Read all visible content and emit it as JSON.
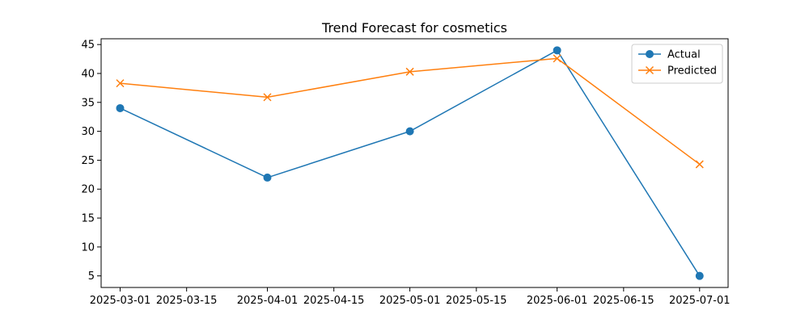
{
  "chart_data": {
    "type": "line",
    "title": "Trend Forecast for cosmetics",
    "xlabel": "",
    "ylabel": "",
    "x_axis": {
      "type": "date",
      "range": [
        "2025-02-25",
        "2025-07-07"
      ],
      "ticks": [
        {
          "date": "2025-03-01",
          "label": "2025-03-01"
        },
        {
          "date": "2025-03-15",
          "label": "2025-03-15"
        },
        {
          "date": "2025-04-01",
          "label": "2025-04-01"
        },
        {
          "date": "2025-04-15",
          "label": "2025-04-15"
        },
        {
          "date": "2025-05-01",
          "label": "2025-05-01"
        },
        {
          "date": "2025-05-15",
          "label": "2025-05-15"
        },
        {
          "date": "2025-06-01",
          "label": "2025-06-01"
        },
        {
          "date": "2025-06-15",
          "label": "2025-06-15"
        },
        {
          "date": "2025-07-01",
          "label": "2025-07-01"
        }
      ]
    },
    "y_axis": {
      "range": [
        3,
        46
      ],
      "ticks": [
        5,
        10,
        15,
        20,
        25,
        30,
        35,
        40,
        45
      ]
    },
    "grid": false,
    "legend": {
      "placement": "top-right"
    },
    "x": [
      "2025-03-01",
      "2025-04-01",
      "2025-05-01",
      "2025-06-01",
      "2025-07-01"
    ],
    "series": [
      {
        "name": "Actual",
        "values": [
          34,
          22,
          30,
          44,
          5
        ],
        "color": "#1f77b4",
        "marker": "circle"
      },
      {
        "name": "Predicted",
        "values": [
          38.3,
          35.9,
          40.3,
          42.6,
          24.3
        ],
        "color": "#ff7f0e",
        "marker": "x"
      }
    ]
  }
}
